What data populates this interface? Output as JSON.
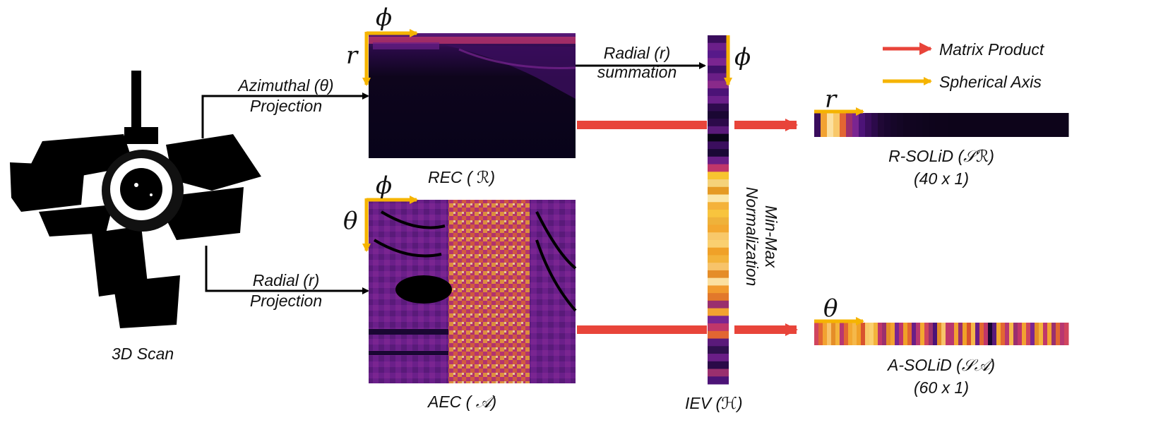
{
  "scan": {
    "label": "3D Scan"
  },
  "azimuthal": {
    "line1": "Azimuthal (θ)",
    "line2": "Projection"
  },
  "radial_proj": {
    "line1": "Radial (r)",
    "line2": "Projection"
  },
  "radial_sum": {
    "line1": "Radial (r)",
    "line2": "summation"
  },
  "rec": {
    "label": "REC ( ℛ)",
    "axis_h": "ϕ",
    "axis_v": "r"
  },
  "aec": {
    "label": "AEC ( 𝒜)",
    "axis_h": "ϕ",
    "axis_v": "θ"
  },
  "iev": {
    "label": "IEV (ℋ)",
    "axis": "ϕ"
  },
  "normalization": {
    "line1": "Min-Max",
    "line2": "Normalization"
  },
  "r_solid": {
    "title": "R-SOLiD (𝒮ℛ)",
    "size": "(40  x 1)",
    "axis": "r"
  },
  "a_solid": {
    "title": "A-SOLiD (𝒮𝒜)",
    "size": "(60 x 1)",
    "axis": "θ"
  },
  "legend": [
    {
      "label": "Matrix Product",
      "color": "#e8443a"
    },
    {
      "label": "Spherical Axis",
      "color": "#f5b400"
    }
  ],
  "colors": {
    "matrix_product": "#e8443a",
    "spherical_axis": "#f5b400",
    "arrow_black": "#000000",
    "inferno_dark": "#0d0621",
    "inferno_purple": "#5a1a7a",
    "inferno_orange": "#f28a1c",
    "inferno_yellow": "#fde3a0"
  },
  "iev_strip": [
    "#3a0d5c",
    "#6b1f8a",
    "#57198a",
    "#7a2591",
    "#40106a",
    "#6a1e86",
    "#8a2a8a",
    "#4c1377",
    "#6b1f8a",
    "#2f0b4e",
    "#1a0733",
    "#2c0a4a",
    "#5a1a7a",
    "#0a0418",
    "#3b0e5e",
    "#1b0836",
    "#6a1e86",
    "#c0366a",
    "#f7c430",
    "#f5d27a",
    "#e59a24",
    "#fbe6a8",
    "#f4b23a",
    "#f8c43e",
    "#efb23a",
    "#f3a830",
    "#f8c86a",
    "#fad070",
    "#f0a128",
    "#f3b33b",
    "#f7c36a",
    "#e58d28",
    "#fbe0a0",
    "#f19a2e",
    "#e2782b",
    "#9a2f6e",
    "#f2a231",
    "#7a2591",
    "#c0366a",
    "#e26632",
    "#5a1a7a",
    "#30104e",
    "#6a1e86",
    "#2a0a48",
    "#9a2f6e",
    "#4c1377"
  ],
  "r_solid_strip": [
    "#3a0d5c",
    "#f2a231",
    "#fbe0a0",
    "#f8c86a",
    "#e26632",
    "#9a2f6e",
    "#7a2591",
    "#4c1377",
    "#3a0d5c",
    "#2c0a4a",
    "#200836",
    "#1a0630",
    "#160629",
    "#140625",
    "#120521",
    "#110520",
    "#10051f",
    "#0f051d",
    "#0e041c",
    "#0e041b",
    "#0e041b",
    "#0d041a",
    "#0d041a",
    "#0d041a",
    "#0d041a",
    "#0d041a",
    "#0d041a",
    "#0d041a",
    "#0d041a",
    "#0d041a",
    "#0d041a",
    "#0d041a",
    "#0d041a",
    "#0d041a",
    "#0d041a",
    "#0d041a",
    "#0d041a",
    "#0d041a",
    "#0d041a",
    "#0d041a"
  ],
  "a_solid_strip": [
    "#d0455e",
    "#e26632",
    "#f2a231",
    "#f7c36a",
    "#e58d28",
    "#f3b33b",
    "#b83770",
    "#e26632",
    "#f3a830",
    "#f5b84a",
    "#f0a128",
    "#d8522e",
    "#f8c86a",
    "#fad070",
    "#f3b33b",
    "#c0366a",
    "#9a2f6e",
    "#e58d28",
    "#f2a231",
    "#7a2591",
    "#c0366a",
    "#f0a128",
    "#e26632",
    "#6a1e86",
    "#b83770",
    "#f3a830",
    "#d0455e",
    "#9a2f6e",
    "#4c1377",
    "#e58d28",
    "#f7c36a",
    "#c0366a",
    "#b83770",
    "#f2a231",
    "#9a2f6e",
    "#f0a128",
    "#d8522e",
    "#f5b84a",
    "#6a1e86",
    "#e26632",
    "#c0366a",
    "#1a0733",
    "#5a1a7a",
    "#f3a830",
    "#e26632",
    "#b83770",
    "#f5b84a",
    "#9a2f6e",
    "#c0366a",
    "#f2a231",
    "#d0455e",
    "#7a2591",
    "#e58d28",
    "#f3b33b",
    "#c0366a",
    "#f2a231",
    "#9a2f6e",
    "#e26632",
    "#b83770",
    "#d0455e"
  ]
}
